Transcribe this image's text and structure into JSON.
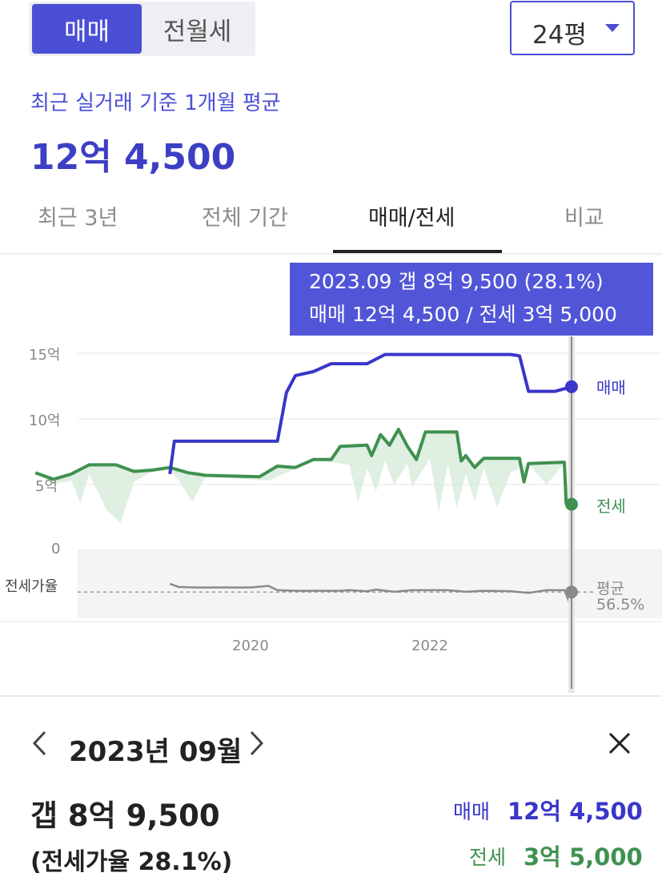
{
  "toggle": {
    "active": "매매",
    "inactive": "전월세"
  },
  "size_select": {
    "value": "24평"
  },
  "summary": {
    "subtitle": "최근 실거래 기준 1개월 평균",
    "price": "12억 4,500"
  },
  "tabs": [
    {
      "label": "최근 3년",
      "active": false
    },
    {
      "label": "전체 기간",
      "active": false
    },
    {
      "label": "매매/전세",
      "active": true
    },
    {
      "label": "비교",
      "active": false
    }
  ],
  "tooltip": {
    "line1": "2023.09  갭 8억 9,500 (28.1%)",
    "line2": "매매 12억 4,500 / 전세 3억 5,000"
  },
  "colors": {
    "accent": "#4b4fd6",
    "sale": "#3a36c9",
    "jeonse": "#3f9150",
    "ratio": "#8a8a8a"
  },
  "chart_data": {
    "type": "line",
    "y_ticks": [
      "15억",
      "10억",
      "5억",
      "0"
    ],
    "y_unit_label": "억",
    "ylim": [
      0,
      15
    ],
    "x_ticks": [
      "2020",
      "2022"
    ],
    "series_labels": {
      "sale": "매매",
      "jeonse": "전세",
      "ratio": "전세가율"
    },
    "ratio_avg_label": "평균",
    "ratio_avg_value": "56.5%",
    "sale": {
      "name": "매매",
      "points": [
        [
          2019.1,
          5.8
        ],
        [
          2019.15,
          8.3
        ],
        [
          2019.6,
          8.3
        ],
        [
          2020.0,
          8.3
        ],
        [
          2020.3,
          8.3
        ],
        [
          2020.4,
          12.0
        ],
        [
          2020.5,
          13.3
        ],
        [
          2020.7,
          13.6
        ],
        [
          2020.9,
          14.2
        ],
        [
          2021.3,
          14.2
        ],
        [
          2021.5,
          14.9
        ],
        [
          2022.0,
          14.9
        ],
        [
          2022.9,
          14.9
        ],
        [
          2023.0,
          14.8
        ],
        [
          2023.1,
          12.1
        ],
        [
          2023.4,
          12.1
        ],
        [
          2023.58,
          12.45
        ]
      ]
    },
    "jeonse": {
      "name": "전세",
      "points": [
        [
          2017.6,
          5.9
        ],
        [
          2017.8,
          5.4
        ],
        [
          2018.0,
          5.8
        ],
        [
          2018.2,
          6.5
        ],
        [
          2018.5,
          6.5
        ],
        [
          2018.7,
          6.0
        ],
        [
          2018.9,
          6.1
        ],
        [
          2019.1,
          6.3
        ],
        [
          2019.3,
          5.9
        ],
        [
          2019.5,
          5.7
        ],
        [
          2020.1,
          5.6
        ],
        [
          2020.3,
          6.4
        ],
        [
          2020.5,
          6.3
        ],
        [
          2020.7,
          6.9
        ],
        [
          2020.9,
          6.9
        ],
        [
          2021.0,
          7.9
        ],
        [
          2021.3,
          8.0
        ],
        [
          2021.35,
          7.2
        ],
        [
          2021.45,
          8.8
        ],
        [
          2021.55,
          8.0
        ],
        [
          2021.65,
          9.2
        ],
        [
          2021.75,
          7.9
        ],
        [
          2021.85,
          6.9
        ],
        [
          2021.95,
          9.0
        ],
        [
          2022.3,
          9.0
        ],
        [
          2022.35,
          6.8
        ],
        [
          2022.4,
          7.2
        ],
        [
          2022.5,
          6.3
        ],
        [
          2022.6,
          7.0
        ],
        [
          2023.0,
          7.0
        ],
        [
          2023.05,
          5.2
        ],
        [
          2023.1,
          6.6
        ],
        [
          2023.5,
          6.7
        ],
        [
          2023.52,
          3.6
        ],
        [
          2023.58,
          3.5
        ]
      ]
    },
    "jeonse_min_band": {
      "points": [
        [
          2017.6,
          5.9
        ],
        [
          2017.8,
          5.0
        ],
        [
          2018.0,
          5.3
        ],
        [
          2018.1,
          3.6
        ],
        [
          2018.2,
          5.8
        ],
        [
          2018.4,
          3.0
        ],
        [
          2018.55,
          2.1
        ],
        [
          2018.7,
          5.2
        ],
        [
          2018.9,
          6.0
        ],
        [
          2019.1,
          6.1
        ],
        [
          2019.2,
          5.3
        ],
        [
          2019.35,
          3.7
        ],
        [
          2019.5,
          5.6
        ],
        [
          2020.2,
          5.3
        ],
        [
          2020.5,
          6.2
        ],
        [
          2020.7,
          6.9
        ],
        [
          2021.1,
          6.5
        ],
        [
          2021.2,
          3.7
        ],
        [
          2021.3,
          6.2
        ],
        [
          2021.4,
          4.5
        ],
        [
          2021.5,
          6.8
        ],
        [
          2021.6,
          5.0
        ],
        [
          2021.75,
          6.6
        ],
        [
          2021.8,
          4.8
        ],
        [
          2022.0,
          7.0
        ],
        [
          2022.1,
          2.9
        ],
        [
          2022.2,
          6.6
        ],
        [
          2022.3,
          3.2
        ],
        [
          2022.4,
          5.8
        ],
        [
          2022.5,
          3.7
        ],
        [
          2022.6,
          6.3
        ],
        [
          2022.75,
          3.3
        ],
        [
          2022.9,
          5.9
        ],
        [
          2023.1,
          6.6
        ],
        [
          2023.3,
          5.0
        ],
        [
          2023.5,
          6.6
        ]
      ]
    },
    "ratio_pct": {
      "name": "전세가율",
      "points": [
        [
          2019.1,
          72
        ],
        [
          2019.2,
          66
        ],
        [
          2019.4,
          65
        ],
        [
          2020.0,
          65
        ],
        [
          2020.2,
          68
        ],
        [
          2020.3,
          60
        ],
        [
          2020.5,
          59
        ],
        [
          2021.0,
          59
        ],
        [
          2021.1,
          60
        ],
        [
          2021.3,
          58
        ],
        [
          2021.4,
          61
        ],
        [
          2021.6,
          57
        ],
        [
          2021.8,
          60
        ],
        [
          2022.2,
          60
        ],
        [
          2022.4,
          57
        ],
        [
          2022.6,
          59
        ],
        [
          2022.9,
          58
        ],
        [
          2023.1,
          55
        ],
        [
          2023.3,
          60
        ],
        [
          2023.5,
          60
        ],
        [
          2023.58,
          28
        ]
      ]
    },
    "ratio_avg": 56.5,
    "selected": {
      "x": 2023.58,
      "label": "2023.09"
    }
  },
  "detail": {
    "date": "2023년 09월",
    "gap": "갭 8억 9,500",
    "ratio": "(전세가율 28.1%)",
    "sale_label": "매매",
    "sale_value": "12억 4,500",
    "jeonse_label": "전세",
    "jeonse_value": "3억 5,000"
  }
}
